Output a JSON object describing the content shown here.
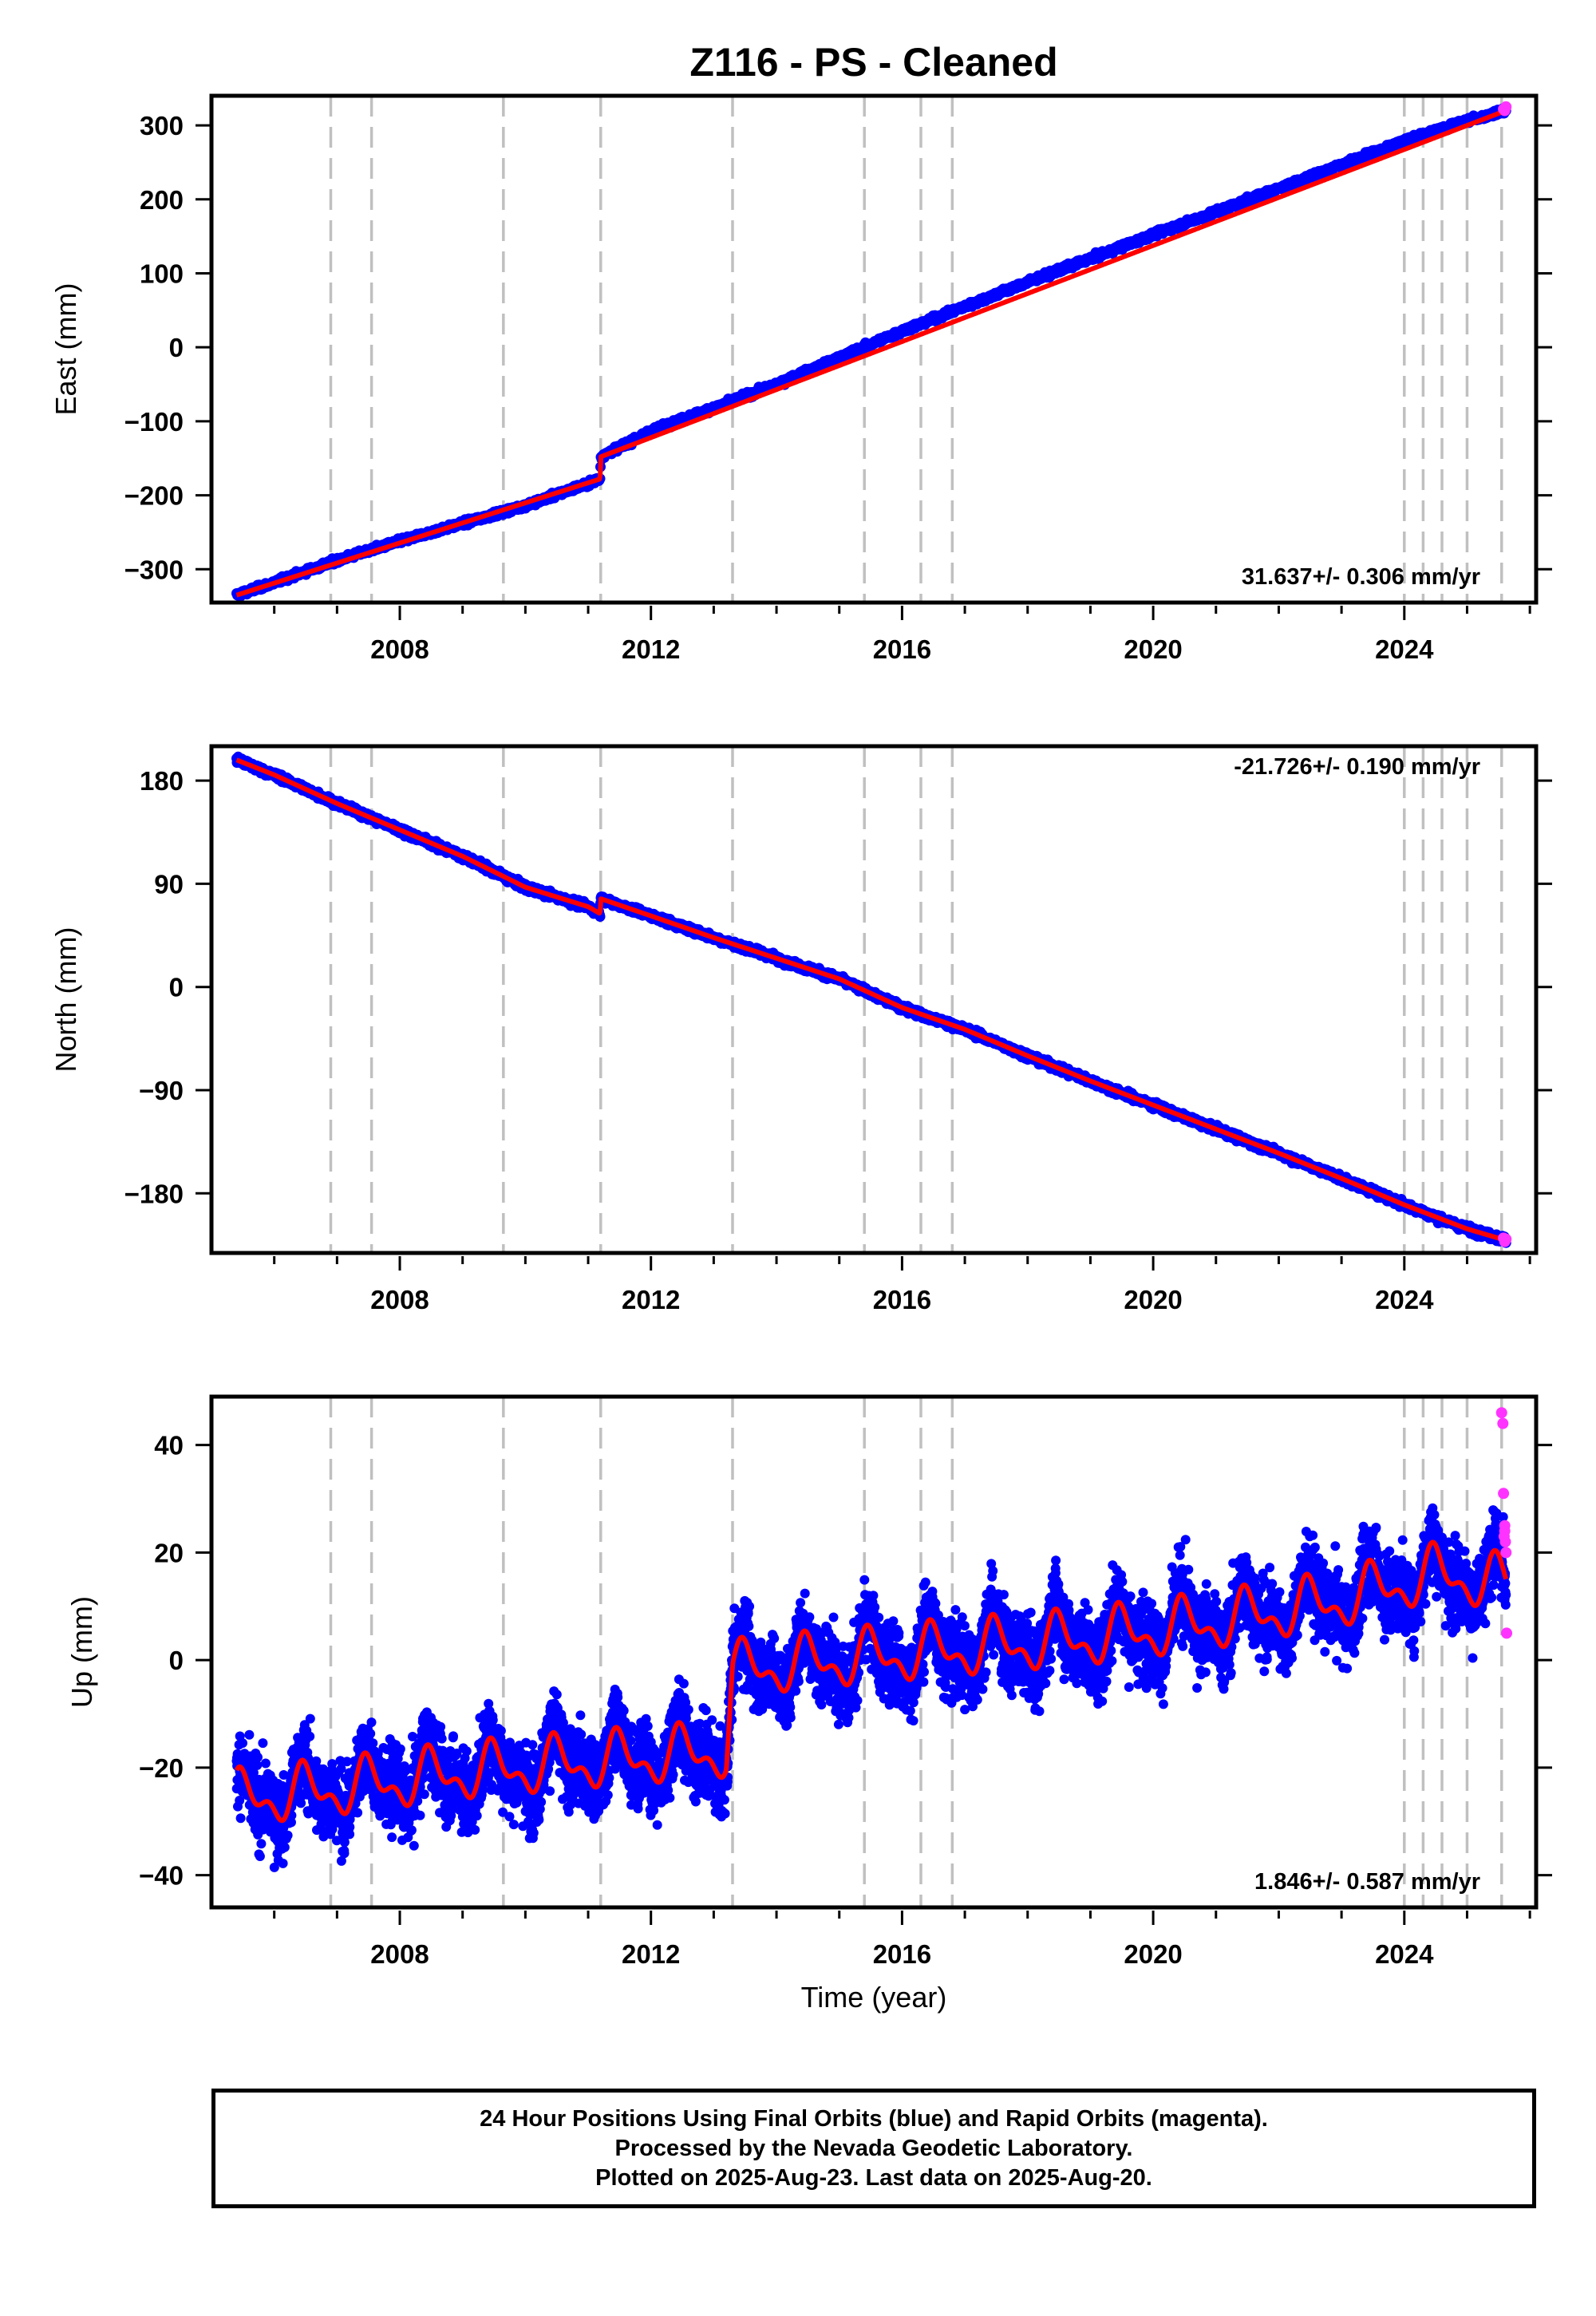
{
  "title": "Z116  - PS - Cleaned",
  "footer": {
    "line1": "24 Hour Positions Using Final Orbits (blue) and Rapid Orbits (magenta).",
    "line2": "Processed by the Nevada Geodetic Laboratory.",
    "line3": "Plotted on 2025-Aug-23. Last data on 2025-Aug-20."
  },
  "colors": {
    "final_orbits": "#0000ff",
    "rapid_orbits": "#ff33ff",
    "model_fit": "#ff0000",
    "event_lines": "#c0c0c0"
  },
  "chart_data": [
    {
      "type": "scatter",
      "panel": "east",
      "ylabel": "East (mm)",
      "xlabel": "",
      "xlim": [
        2005.0,
        2026.1
      ],
      "ylim": [
        -345,
        340
      ],
      "xticks": [
        2008,
        2012,
        2016,
        2020,
        2024
      ],
      "yticks": [
        -300,
        -200,
        -100,
        0,
        100,
        200,
        300
      ],
      "ytick_labels": [
        "−300",
        "−200",
        "−100",
        "0",
        "100",
        "200",
        "300"
      ],
      "xtick_labels": [
        "2008",
        "2012",
        "2016",
        "2020",
        "2024"
      ],
      "rate_label": "31.637+/- 0.306 mm/yr",
      "rate_position": "bottom-right",
      "event_lines": [
        2006.9,
        2007.55,
        2009.65,
        2011.2,
        2013.3,
        2015.4,
        2016.3,
        2016.8,
        2024.0,
        2024.3,
        2024.6,
        2025.0,
        2025.55
      ],
      "series": [
        {
          "kind": "final_orbits",
          "x": [
            2005.4,
            2006.0,
            2007.0,
            2008.0,
            2009.0,
            2010.0,
            2011.0,
            2011.19,
            2011.2,
            2012.0,
            2013.0,
            2014.0,
            2015.0,
            2016.0,
            2017.0,
            2018.0,
            2019.0,
            2020.0,
            2021.0,
            2022.0,
            2023.0,
            2024.0,
            2025.0,
            2025.62
          ],
          "y": [
            -335,
            -318,
            -288,
            -262,
            -238,
            -214,
            -184,
            -178,
            -148,
            -113,
            -82,
            -50,
            -14,
            22,
            55,
            88,
            120,
            152,
            183,
            215,
            247,
            279,
            306,
            320
          ],
          "noise_mm": 3
        },
        {
          "kind": "rapid_orbits",
          "x": [
            2025.58,
            2025.6,
            2025.62
          ],
          "y": [
            322,
            320,
            325
          ]
        },
        {
          "kind": "model_fit",
          "x": [
            2005.4,
            2011.19,
            2011.2,
            2025.62
          ],
          "y": [
            -335,
            -178,
            -148,
            320
          ]
        }
      ]
    },
    {
      "type": "scatter",
      "panel": "north",
      "ylabel": "North (mm)",
      "xlabel": "",
      "xlim": [
        2005.0,
        2026.1
      ],
      "ylim": [
        -232,
        210
      ],
      "xticks": [
        2008,
        2012,
        2016,
        2020,
        2024
      ],
      "yticks": [
        -180,
        -90,
        0,
        90,
        180
      ],
      "ytick_labels": [
        "−180",
        "−90",
        "0",
        "90",
        "180"
      ],
      "xtick_labels": [
        "2008",
        "2012",
        "2016",
        "2020",
        "2024"
      ],
      "rate_label": "-21.726+/- 0.190 mm/yr",
      "rate_position": "top-right",
      "event_lines": [
        2006.9,
        2007.55,
        2009.65,
        2011.2,
        2013.3,
        2015.4,
        2016.3,
        2016.8,
        2024.0,
        2024.3,
        2024.6,
        2025.0,
        2025.55
      ],
      "series": [
        {
          "kind": "final_orbits",
          "x": [
            2005.4,
            2006.0,
            2007.0,
            2008.0,
            2009.0,
            2010.0,
            2011.0,
            2011.19,
            2011.2,
            2012.0,
            2013.0,
            2014.0,
            2015.0,
            2016.0,
            2017.0,
            2018.0,
            2019.0,
            2020.0,
            2021.0,
            2022.0,
            2023.0,
            2024.0,
            2025.0,
            2025.62
          ],
          "y": [
            198,
            185,
            160,
            137,
            114,
            87,
            70,
            64,
            77,
            62,
            43,
            25,
            7,
            -18,
            -37,
            -60,
            -82,
            -103,
            -124,
            -145,
            -167,
            -190,
            -211,
            -221
          ],
          "noise_mm": 2.5
        },
        {
          "kind": "rapid_orbits",
          "x": [
            2025.58,
            2025.6,
            2025.62
          ],
          "y": [
            -219,
            -222,
            -220
          ]
        },
        {
          "kind": "model_fit",
          "x": [
            2005.4,
            2006.0,
            2007.0,
            2008.0,
            2009.0,
            2010.0,
            2011.0,
            2011.19,
            2011.2,
            2012.0,
            2013.0,
            2014.0,
            2015.0,
            2016.0,
            2017.0,
            2018.0,
            2019.0,
            2020.0,
            2021.0,
            2022.0,
            2023.0,
            2024.0,
            2025.0,
            2025.62
          ],
          "y": [
            198,
            185,
            160,
            137,
            114,
            87,
            70,
            64,
            77,
            62,
            43,
            25,
            7,
            -18,
            -37,
            -60,
            -82,
            -103,
            -124,
            -145,
            -167,
            -190,
            -211,
            -221
          ]
        }
      ]
    },
    {
      "type": "scatter",
      "panel": "up",
      "ylabel": "Up (mm)",
      "xlabel": "Time (year)",
      "xlim": [
        2005.0,
        2026.1
      ],
      "ylim": [
        -46,
        49
      ],
      "xticks": [
        2008,
        2012,
        2016,
        2020,
        2024
      ],
      "yticks": [
        -40,
        -20,
        0,
        20,
        40
      ],
      "ytick_labels": [
        "−40",
        "−20",
        "0",
        "20",
        "40"
      ],
      "xtick_labels": [
        "2008",
        "2012",
        "2016",
        "2020",
        "2024"
      ],
      "rate_label": "1.846+/- 0.587 mm/yr",
      "rate_position": "bottom-right",
      "event_lines": [
        2006.9,
        2007.55,
        2009.65,
        2011.2,
        2013.3,
        2015.4,
        2016.3,
        2016.8,
        2024.0,
        2024.3,
        2024.6,
        2025.0,
        2025.55
      ],
      "series": [
        {
          "kind": "final_orbits",
          "x": [
            2005.4,
            2007.0,
            2009.0,
            2011.0,
            2013.2,
            2013.3,
            2015.0,
            2017.0,
            2019.0,
            2021.0,
            2023.0,
            2024.5,
            2025.62
          ],
          "y": [
            -26,
            -24,
            -21,
            -19,
            -17,
            -2,
            0,
            2,
            4,
            7,
            11,
            16,
            14
          ],
          "noise_mm": 6,
          "seasonal_amp_mm": 4
        },
        {
          "kind": "rapid_orbits",
          "x": [
            2025.55,
            2025.57,
            2025.58,
            2025.6,
            2025.61,
            2025.62,
            2025.63,
            2025.6,
            2025.59
          ],
          "y": [
            46,
            44,
            31,
            25,
            22,
            20,
            5,
            24,
            23
          ]
        },
        {
          "kind": "model_fit",
          "x": [
            2005.4,
            2007.0,
            2009.0,
            2011.0,
            2013.2,
            2013.3,
            2015.0,
            2017.0,
            2019.0,
            2021.0,
            2023.0,
            2024.5,
            2025.62
          ],
          "y": [
            -26,
            -24,
            -21,
            -19,
            -17,
            -2,
            0,
            2,
            4,
            7,
            11,
            16,
            14
          ],
          "seasonal_amp_mm": 4
        }
      ]
    }
  ]
}
